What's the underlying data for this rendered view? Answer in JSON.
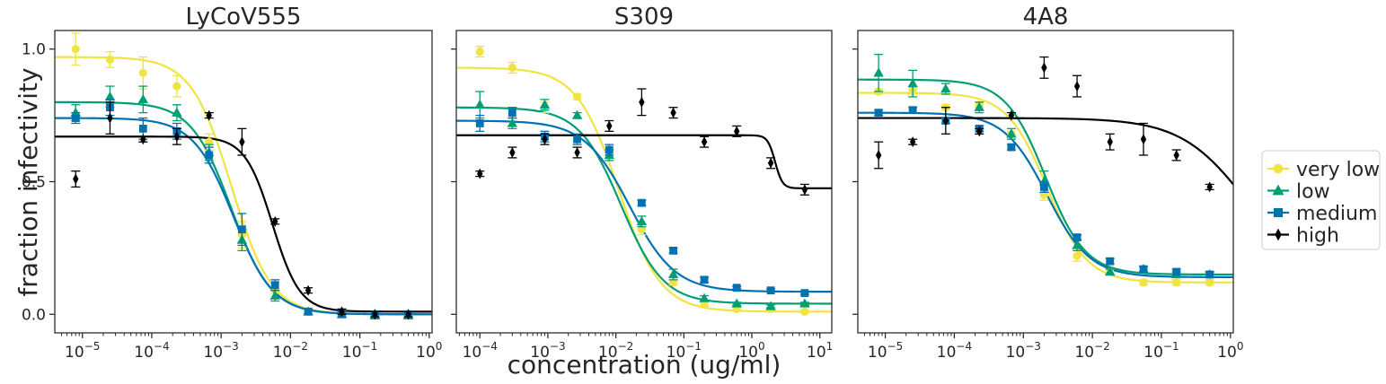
{
  "chart_data": {
    "type": "scatter",
    "xlabel": "concentration (ug/ml)",
    "ylabel": "fraction infectivity",
    "xscale": "log",
    "ylim": [
      -0.07,
      1.07
    ],
    "yticks": [
      0.0,
      0.5,
      1.0
    ],
    "ytick_labels": [
      "0.0",
      "0.5",
      "1.0"
    ],
    "grid": false,
    "legend": {
      "placement": "right",
      "entries": [
        {
          "name": "very low",
          "color": "#F0E442",
          "marker": "circle"
        },
        {
          "name": "low",
          "color": "#009E73",
          "marker": "triangle"
        },
        {
          "name": "medium",
          "color": "#0072B2",
          "marker": "square"
        },
        {
          "name": "high",
          "color": "#000000",
          "marker": "thin-diamond"
        }
      ]
    },
    "panels": [
      {
        "title": "LyCoV555",
        "xlim": [
          4e-06,
          1.1
        ],
        "xticks": [
          -5,
          -4,
          -3,
          -2,
          -1,
          0
        ],
        "x": [
          8e-06,
          2.5e-05,
          7.5e-05,
          0.00023,
          0.00067,
          0.002,
          0.006,
          0.018,
          0.055,
          0.165,
          0.5
        ],
        "series": [
          {
            "name": "very low",
            "values": [
              1.0,
              0.96,
              0.91,
              0.86,
              0.65,
              0.3,
              0.1,
              0.01,
              0.0,
              -0.005,
              -0.005
            ],
            "err": [
              0.06,
              0.03,
              0.06,
              0.04,
              0.03,
              0.05,
              0.02,
              0.01,
              0.01,
              0.01,
              0.01
            ],
            "fit": {
              "top": 0.97,
              "bottom": 0.0,
              "ic50": 0.0014,
              "hill": 1.5
            }
          },
          {
            "name": "low",
            "values": [
              0.76,
              0.82,
              0.81,
              0.76,
              0.61,
              0.28,
              0.07,
              0.01,
              0.0,
              -0.005,
              -0.005
            ],
            "err": [
              0.03,
              0.04,
              0.05,
              0.03,
              0.03,
              0.04,
              0.02,
              0.01,
              0.01,
              0.01,
              0.01
            ],
            "fit": {
              "top": 0.8,
              "bottom": 0.0,
              "ic50": 0.0014,
              "hill": 1.5
            }
          },
          {
            "name": "medium",
            "values": [
              0.74,
              0.78,
              0.7,
              0.69,
              0.6,
              0.32,
              0.11,
              0.01,
              0.0,
              0.0,
              0.0
            ],
            "err": [
              0.02,
              0.03,
              0.04,
              0.03,
              0.03,
              0.06,
              0.02,
              0.01,
              0.01,
              0.01,
              0.01
            ],
            "fit": {
              "top": 0.74,
              "bottom": 0.0,
              "ic50": 0.0015,
              "hill": 1.5
            }
          },
          {
            "name": "high",
            "values": [
              0.51,
              0.74,
              0.66,
              0.67,
              0.75,
              0.65,
              0.35,
              0.09,
              0.01,
              0.0,
              0.0
            ],
            "err": [
              0.03,
              0.06,
              0.01,
              0.03,
              0.01,
              0.05,
              0.01,
              0.01,
              0.01,
              0.01,
              0.01
            ],
            "fit": {
              "top": 0.67,
              "bottom": 0.01,
              "ic50": 0.0055,
              "hill": 2.2
            }
          }
        ]
      },
      {
        "title": "S309",
        "xlim": [
          4.5e-05,
          15
        ],
        "xticks": [
          -4,
          -3,
          -2,
          -1,
          0,
          1
        ],
        "x": [
          0.0001,
          0.0003,
          0.0009,
          0.0027,
          0.008,
          0.024,
          0.07,
          0.2,
          0.6,
          1.9,
          6
        ],
        "series": [
          {
            "name": "very low",
            "values": [
              0.99,
              0.93,
              0.78,
              0.82,
              0.61,
              0.32,
              0.12,
              0.04,
              0.02,
              0.02,
              0.01
            ],
            "err": [
              0.02,
              0.02,
              0.02,
              0.01,
              0.01,
              0.02,
              0.01,
              0.01,
              0.005,
              0.005,
              0.005
            ],
            "fit": {
              "top": 0.93,
              "bottom": 0.01,
              "ic50": 0.011,
              "hill": 1.4
            }
          },
          {
            "name": "low",
            "values": [
              0.79,
              0.72,
              0.79,
              0.75,
              0.6,
              0.35,
              0.15,
              0.06,
              0.04,
              0.03,
              0.04
            ],
            "err": [
              0.05,
              0.02,
              0.02,
              0.01,
              0.02,
              0.02,
              0.02,
              0.01,
              0.005,
              0.005,
              0.005
            ],
            "fit": {
              "top": 0.78,
              "bottom": 0.04,
              "ic50": 0.012,
              "hill": 1.4
            }
          },
          {
            "name": "medium",
            "values": [
              0.72,
              0.76,
              0.67,
              0.66,
              0.62,
              0.42,
              0.24,
              0.13,
              0.1,
              0.09,
              0.08
            ],
            "err": [
              0.03,
              0.02,
              0.02,
              0.02,
              0.02,
              0.01,
              0.01,
              0.01,
              0.005,
              0.005,
              0.005
            ],
            "fit": {
              "top": 0.73,
              "bottom": 0.085,
              "ic50": 0.016,
              "hill": 1.3
            }
          },
          {
            "name": "high",
            "values": [
              0.53,
              0.61,
              0.66,
              0.61,
              0.71,
              0.8,
              0.76,
              0.65,
              0.69,
              0.57,
              0.47
            ],
            "err": [
              0.01,
              0.02,
              0.02,
              0.02,
              0.02,
              0.05,
              0.02,
              0.02,
              0.02,
              0.02,
              0.02
            ],
            "fit": {
              "top": 0.675,
              "bottom": 0.475,
              "ic50": 2.2,
              "hill": 8
            }
          }
        ]
      },
      {
        "title": "4A8",
        "xlim": [
          4e-06,
          1.1
        ],
        "xticks": [
          -5,
          -4,
          -3,
          -2,
          -1,
          0
        ],
        "x": [
          8e-06,
          2.5e-05,
          7.5e-05,
          0.00023,
          0.00067,
          0.002,
          0.006,
          0.018,
          0.055,
          0.165,
          0.5
        ],
        "series": [
          {
            "name": "very low",
            "values": [
              0.84,
              0.84,
              0.78,
              0.79,
              0.68,
              0.45,
              0.22,
              0.16,
              0.12,
              0.12,
              0.12
            ],
            "err": [
              0.01,
              0.01,
              0.01,
              0.01,
              0.01,
              0.02,
              0.02,
              0.01,
              0.01,
              0.01,
              0.01
            ],
            "fit": {
              "top": 0.835,
              "bottom": 0.12,
              "ic50": 0.0022,
              "hill": 1.5
            }
          },
          {
            "name": "low",
            "values": [
              0.91,
              0.87,
              0.85,
              0.78,
              0.68,
              0.5,
              0.26,
              0.16,
              0.17,
              0.15,
              0.15
            ],
            "err": [
              0.07,
              0.05,
              0.02,
              0.02,
              0.02,
              0.04,
              0.02,
              0.01,
              0.01,
              0.01,
              0.01
            ],
            "fit": {
              "top": 0.885,
              "bottom": 0.15,
              "ic50": 0.0021,
              "hill": 1.5
            }
          },
          {
            "name": "medium",
            "values": [
              0.76,
              0.77,
              0.73,
              0.7,
              0.63,
              0.48,
              0.29,
              0.2,
              0.17,
              0.16,
              0.15
            ],
            "err": [
              0.01,
              0.01,
              0.01,
              0.01,
              0.01,
              0.02,
              0.01,
              0.01,
              0.01,
              0.01,
              0.01
            ],
            "fit": {
              "top": 0.76,
              "bottom": 0.14,
              "ic50": 0.0022,
              "hill": 1.4
            }
          },
          {
            "name": "high",
            "values": [
              0.6,
              0.65,
              0.73,
              0.69,
              0.75,
              0.93,
              0.86,
              0.65,
              0.66,
              0.6,
              0.48
            ],
            "err": [
              0.05,
              0.01,
              0.05,
              0.01,
              0.01,
              0.04,
              0.04,
              0.03,
              0.06,
              0.02,
              0.01
            ],
            "fit": {
              "top": 0.74,
              "bottom": 0.1,
              "ic50": 1.8,
              "hill": 0.9
            }
          }
        ]
      }
    ]
  }
}
